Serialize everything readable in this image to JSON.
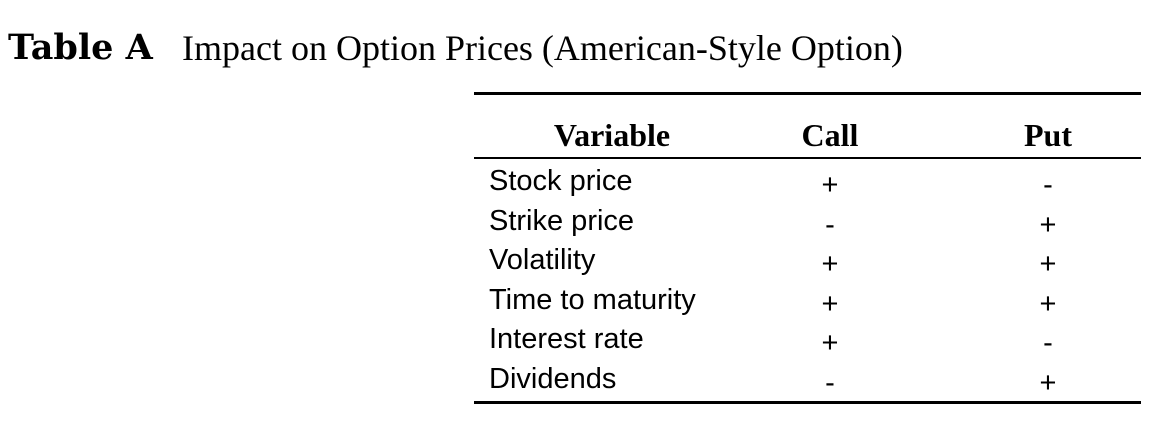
{
  "caption": {
    "label": "Table A",
    "title": "Impact on Option Prices (American-Style Option)"
  },
  "table": {
    "headers": [
      "Variable",
      "Call",
      "Put"
    ],
    "rows": [
      {
        "variable": "Stock price",
        "call": "+",
        "put": "-"
      },
      {
        "variable": "Strike price",
        "call": "-",
        "put": "+"
      },
      {
        "variable": "Volatility",
        "call": "+",
        "put": "+"
      },
      {
        "variable": "Time to maturity",
        "call": "+",
        "put": "+"
      },
      {
        "variable": "Interest rate",
        "call": "+",
        "put": "-"
      },
      {
        "variable": "Dividends",
        "call": "-",
        "put": "+"
      }
    ]
  }
}
